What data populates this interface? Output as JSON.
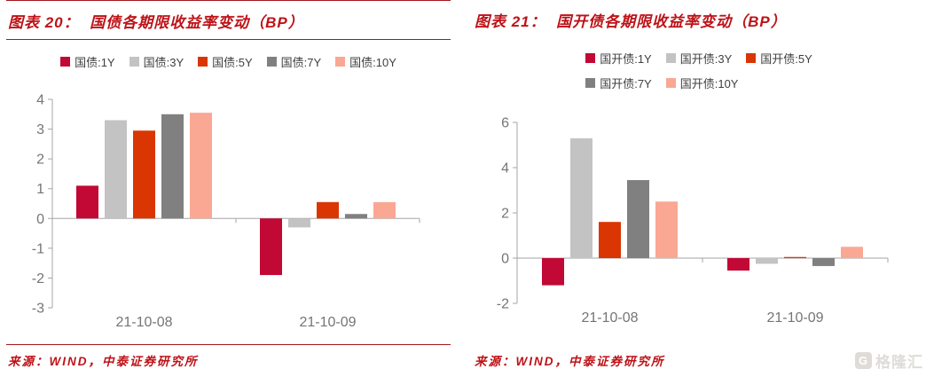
{
  "colors": {
    "rule": "#A3181D",
    "title_text": "#BE1217",
    "source_text": "#BE1217",
    "axis": "#A6A6A6",
    "tick_label": "#757575",
    "legend_text": "#3F3F3F",
    "watermark": "#DFDCD8",
    "series": [
      "#C20834",
      "#C3C3C3",
      "#D93603",
      "#808080",
      "#FAA794"
    ]
  },
  "watermark": {
    "icon_letter": "G",
    "text": "格隆汇"
  },
  "panels": [
    {
      "title": "图表 20：  国债各期限收益率变动（BP）",
      "source": "来源：WIND，中泰证券研究所",
      "legend_rows": [
        [
          "国债:1Y",
          "国债:3Y",
          "国债:5Y",
          "国债:7Y",
          "国债:10Y"
        ]
      ],
      "chart_data": {
        "type": "bar",
        "title": "国债各期限收益率变动（BP）",
        "categories": [
          "21-10-08",
          "21-10-09"
        ],
        "series": [
          {
            "name": "国债:1Y",
            "values": [
              1.1,
              -1.9
            ]
          },
          {
            "name": "国债:3Y",
            "values": [
              3.3,
              -0.3
            ]
          },
          {
            "name": "国债:5Y",
            "values": [
              2.95,
              0.55
            ]
          },
          {
            "name": "国债:7Y",
            "values": [
              3.5,
              0.15
            ]
          },
          {
            "name": "国债:10Y",
            "values": [
              3.55,
              0.55
            ]
          }
        ],
        "xlabel": "",
        "ylabel": "",
        "ylim": [
          -3,
          4
        ],
        "ytick_step": 1,
        "grid": false,
        "legend_position": "top"
      }
    },
    {
      "title": "图表 21：  国开债各期限收益率变动（BP）",
      "source": "来源：WIND，中泰证券研究所",
      "legend_rows": [
        [
          "国开债:1Y",
          "国开债:3Y",
          "国开债:5Y"
        ],
        [
          "国开债:7Y",
          "国开债:10Y"
        ]
      ],
      "chart_data": {
        "type": "bar",
        "title": "国开债各期限收益率变动（BP）",
        "categories": [
          "21-10-08",
          "21-10-09"
        ],
        "series": [
          {
            "name": "国开债:1Y",
            "values": [
              -1.2,
              -0.55
            ]
          },
          {
            "name": "国开债:3Y",
            "values": [
              5.3,
              -0.25
            ]
          },
          {
            "name": "国开债:5Y",
            "values": [
              1.6,
              0.05
            ]
          },
          {
            "name": "国开债:7Y",
            "values": [
              3.45,
              -0.35
            ]
          },
          {
            "name": "国开债:10Y",
            "values": [
              2.5,
              0.5
            ]
          }
        ],
        "xlabel": "",
        "ylabel": "",
        "ylim": [
          -2,
          6
        ],
        "ytick_step": 2,
        "grid": false,
        "legend_position": "top"
      }
    }
  ]
}
